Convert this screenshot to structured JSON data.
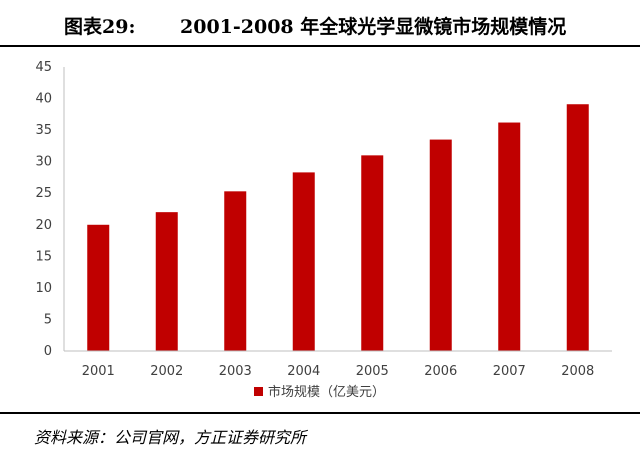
{
  "figure": {
    "label": "图表29:",
    "title": "2001-2008 年全球光学显微镜市场规模情况"
  },
  "source": "资料来源：公司官网，方正证券研究所",
  "colors": {
    "bar": "#c00000",
    "axis": "#bfbfbf",
    "text": "#404040"
  },
  "chart_data": {
    "type": "bar",
    "categories": [
      "2001",
      "2002",
      "2003",
      "2004",
      "2005",
      "2006",
      "2007",
      "2008"
    ],
    "series": [
      {
        "name": "市场规模（亿美元）",
        "values": [
          20.0,
          22.0,
          25.3,
          28.3,
          31.0,
          33.5,
          36.2,
          39.1
        ]
      }
    ],
    "ylim": [
      0,
      45
    ],
    "yticks": [
      "0",
      "5",
      "10",
      "15",
      "20",
      "25",
      "30",
      "35",
      "40",
      "45"
    ],
    "grid": false,
    "legend": "bottom-center"
  }
}
